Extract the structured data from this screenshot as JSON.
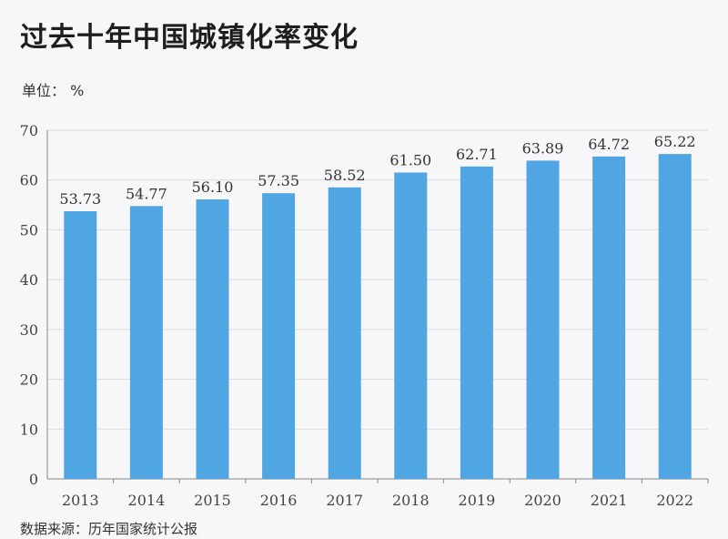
{
  "header": {
    "title": "过去十年中国城镇化率变化",
    "unit": "单位： %"
  },
  "footer": {
    "source": "数据来源：历年国家统计公报"
  },
  "colors": {
    "bar": "#4fa6e3",
    "grid": "#dcdcdc",
    "axis": "#888888"
  },
  "chart_data": {
    "type": "bar",
    "categories": [
      "2013",
      "2014",
      "2015",
      "2016",
      "2017",
      "2018",
      "2019",
      "2020",
      "2021",
      "2022"
    ],
    "values": [
      53.73,
      54.77,
      56.1,
      57.35,
      58.52,
      61.5,
      62.71,
      63.89,
      64.72,
      65.22
    ],
    "data_labels": [
      "53.73",
      "54.77",
      "56.10",
      "57.35",
      "58.52",
      "61.50",
      "62.71",
      "63.89",
      "64.72",
      "65.22"
    ],
    "ylim": [
      0,
      70
    ],
    "yticks": [
      0,
      10,
      20,
      30,
      40,
      50,
      60,
      70
    ],
    "grid": true,
    "legend": "none"
  }
}
